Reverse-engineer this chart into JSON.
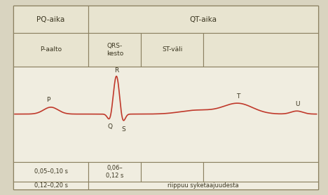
{
  "bg_outer": "#d9d4c0",
  "bg_table": "#e8e4d0",
  "bg_plot": "#f0ede0",
  "line_color": "#c0392b",
  "border_color": "#8b8060",
  "title_row1_left": "PQ-aika",
  "title_row1_right": "QT-aika",
  "title_row2_col1": "P-aalto",
  "title_row2_col2": "QRS-\nkesto",
  "title_row2_col3": "ST-väli",
  "bottom_row1_col1": "0,05–0,10 s",
  "bottom_row1_col2": "0,06–\n0,12 s",
  "bottom_row2_col1": "0,12–0,20 s",
  "bottom_row2_col2": "riippuu syketaajuudesta",
  "label_P": "P",
  "label_Q": "Q",
  "label_R": "R",
  "label_S": "S",
  "label_T": "T",
  "label_U": "U",
  "figsize": [
    4.68,
    2.78
  ],
  "dpi": 100
}
